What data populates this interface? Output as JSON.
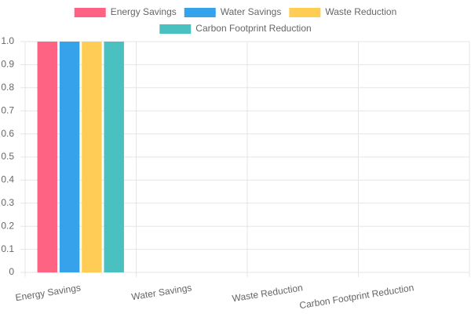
{
  "chart_data": {
    "type": "bar",
    "categories": [
      "Energy Savings",
      "Water Savings",
      "Waste Reduction",
      "Carbon Footprint Reduction"
    ],
    "series": [
      {
        "name": "Energy Savings",
        "color": "#ff6384",
        "values": [
          1,
          0,
          0,
          0
        ]
      },
      {
        "name": "Water Savings",
        "color": "#36a2eb",
        "values": [
          1,
          0,
          0,
          0
        ]
      },
      {
        "name": "Waste Reduction",
        "color": "#ffcd56",
        "values": [
          1,
          0,
          0,
          0
        ]
      },
      {
        "name": "Carbon Footprint Reduction",
        "color": "#4bc0c0",
        "values": [
          1,
          0,
          0,
          0
        ]
      }
    ],
    "ylim": [
      0,
      1
    ],
    "yticks": [
      0,
      0.1,
      0.2,
      0.3,
      0.4,
      0.5,
      0.6,
      0.7,
      0.8,
      0.9,
      {
        "value": 1,
        "label": "1.0"
      }
    ],
    "grid": true,
    "legend": "top"
  }
}
